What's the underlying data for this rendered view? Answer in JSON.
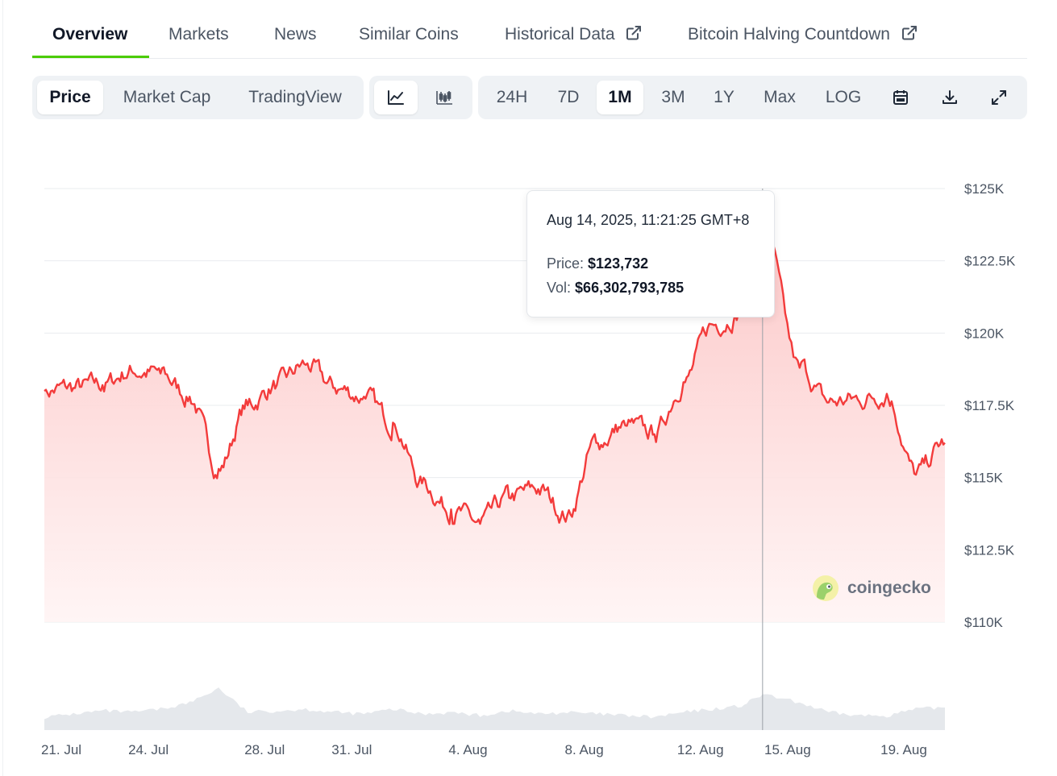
{
  "tabs": [
    {
      "label": "Overview",
      "active": true
    },
    {
      "label": "Markets"
    },
    {
      "label": "News"
    },
    {
      "label": "Similar Coins"
    },
    {
      "label": "Historical Data",
      "external": true
    },
    {
      "label": "Bitcoin Halving Countdown",
      "external": true
    }
  ],
  "toolbar": {
    "data_type": [
      "Price",
      "Market Cap",
      "TradingView"
    ],
    "data_type_selected": "Price",
    "chart_style_icons": [
      "line-chart-icon",
      "candlestick-chart-icon"
    ],
    "chart_style_selected": "line",
    "ranges": [
      "24H",
      "7D",
      "1M",
      "3M",
      "1Y",
      "Max",
      "LOG"
    ],
    "range_selected": "1M",
    "tool_icons": [
      "calendar-icon",
      "download-icon",
      "expand-icon"
    ]
  },
  "tooltip": {
    "date": "Aug 14, 2025, 11:21:25 GMT+8",
    "price_label": "Price:",
    "price_value": "$123,732",
    "vol_label": "Vol:",
    "vol_value": "$66,302,793,785"
  },
  "watermark": {
    "text": "coingecko"
  },
  "colors": {
    "line": "#f33b3b",
    "accent": "#4bcc00",
    "volume": "#e5e8ec"
  },
  "chart_data": {
    "type": "line",
    "series": [
      {
        "x": [
          "2025-07-20",
          "2025-07-21",
          "2025-07-22",
          "2025-07-23",
          "2025-07-24",
          "2025-07-25",
          "2025-07-26",
          "2025-07-27",
          "2025-07-28",
          "2025-07-29",
          "2025-07-30",
          "2025-07-31",
          "2025-08-01",
          "2025-08-02",
          "2025-08-03",
          "2025-08-04",
          "2025-08-05",
          "2025-08-06",
          "2025-08-07",
          "2025-08-08",
          "2025-08-09",
          "2025-08-10",
          "2025-08-11",
          "2025-08-12",
          "2025-08-13",
          "2025-08-14",
          "2025-08-15",
          "2025-08-16",
          "2025-08-17",
          "2025-08-18",
          "2025-08-19",
          "2025-08-20"
        ],
        "values": [
          118000,
          118100,
          118200,
          118700,
          118600,
          117800,
          115300,
          117500,
          118200,
          118900,
          118100,
          117800,
          116900,
          114800,
          113900,
          113400,
          114300,
          114600,
          113700,
          116200,
          116800,
          116500,
          118300,
          120300,
          120700,
          123732,
          118800,
          117600,
          117700,
          117900,
          115100,
          116200
        ]
      }
    ],
    "volume_relative": [
      0.16,
      0.2,
      0.24,
      0.22,
      0.26,
      0.34,
      0.52,
      0.22,
      0.24,
      0.26,
      0.22,
      0.2,
      0.26,
      0.2,
      0.22,
      0.18,
      0.24,
      0.2,
      0.22,
      0.2,
      0.18,
      0.16,
      0.22,
      0.26,
      0.3,
      0.44,
      0.34,
      0.22,
      0.18,
      0.18,
      0.26,
      0.28
    ],
    "highlight": {
      "x": "2025-08-14T11:21:25",
      "price": 123732
    },
    "y_ticks": [
      "$125K",
      "$122.5K",
      "$120K",
      "$117.5K",
      "$115K",
      "$112.5K",
      "$110K"
    ],
    "y_tick_values": [
      125000,
      122500,
      120000,
      117500,
      115000,
      112500,
      110000
    ],
    "ylim": [
      110000,
      125000
    ],
    "x_ticks": [
      "21. Jul",
      "24. Jul",
      "28. Jul",
      "31. Jul",
      "4. Aug",
      "8. Aug",
      "12. Aug",
      "15. Aug",
      "19. Aug"
    ],
    "x_tick_dates": [
      "2025-07-21",
      "2025-07-24",
      "2025-07-28",
      "2025-07-31",
      "2025-08-04",
      "2025-08-08",
      "2025-08-12",
      "2025-08-15",
      "2025-08-19"
    ],
    "grid": true
  }
}
